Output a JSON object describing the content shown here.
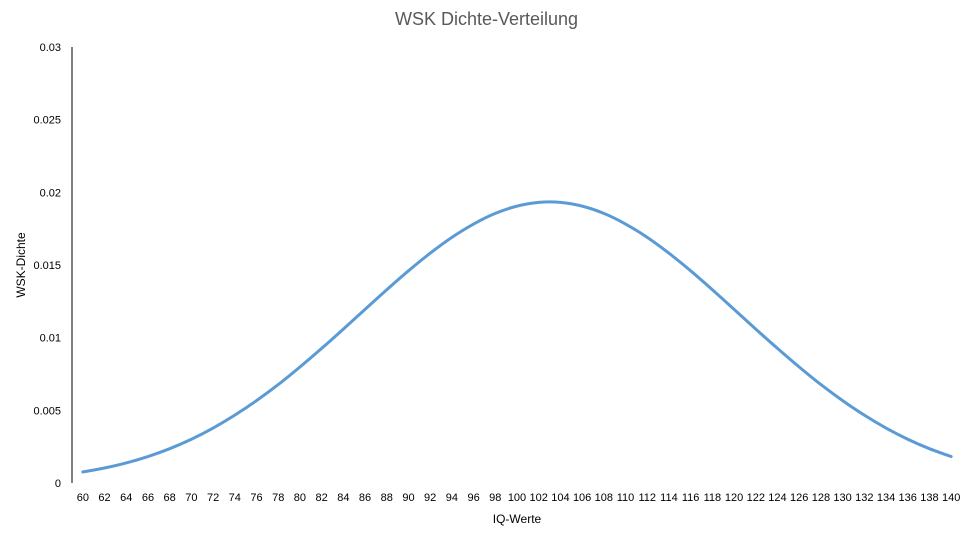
{
  "chart_data": {
    "type": "line",
    "title": "WSK Dichte-Verteilung",
    "xlabel": "IQ-Werte",
    "ylabel": "WSK-Dichte",
    "ylim": [
      0,
      0.03
    ],
    "yticks": [
      "0",
      "0.005",
      "0.01",
      "0.015",
      "0.02",
      "0.025",
      "0.03"
    ],
    "grid": false,
    "legend": "none",
    "x": [
      60,
      62,
      64,
      66,
      68,
      70,
      72,
      74,
      76,
      78,
      80,
      82,
      84,
      86,
      88,
      90,
      92,
      94,
      96,
      98,
      100,
      102,
      104,
      106,
      108,
      110,
      112,
      114,
      116,
      118,
      120,
      122,
      124,
      126,
      128,
      130,
      132,
      134,
      136,
      138,
      140
    ],
    "series": [
      {
        "color": "#5B9BD5",
        "values": [
          0.00076,
          0.00103,
          0.00138,
          0.00182,
          0.00236,
          0.00301,
          0.00378,
          0.00467,
          0.00567,
          0.00677,
          0.00798,
          0.00926,
          0.01059,
          0.01195,
          0.0133,
          0.0146,
          0.01581,
          0.0169,
          0.01782,
          0.01855,
          0.01905,
          0.01931,
          0.01931,
          0.01905,
          0.01855,
          0.01782,
          0.0169,
          0.01581,
          0.0146,
          0.0133,
          0.01195,
          0.01059,
          0.00926,
          0.00798,
          0.00677,
          0.00567,
          0.00467,
          0.00378,
          0.00301,
          0.00236,
          0.00182
        ]
      }
    ]
  }
}
